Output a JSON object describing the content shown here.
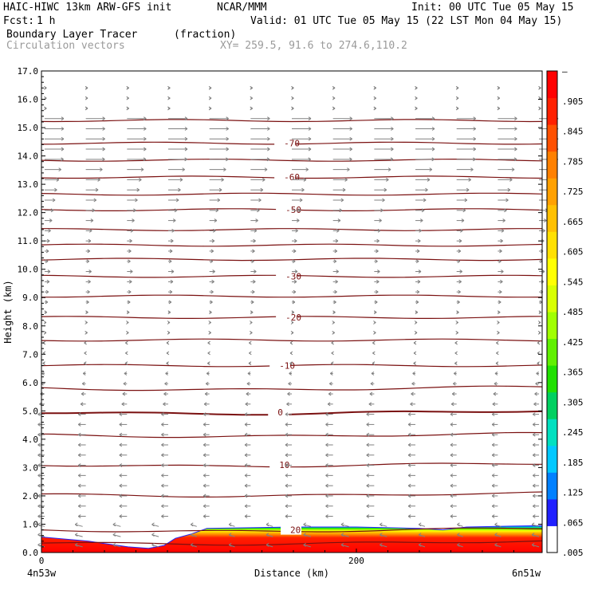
{
  "header": {
    "model": "HAIC-HIWC 13km ARW-GFS init",
    "center": "NCAR/MMM",
    "init": "Init: 00 UTC Tue 05 May 15",
    "fcst_label": "Fcst:",
    "fcst_value": "1 h",
    "valid": "Valid: 01 UTC Tue 05 May 15 (22 LST Mon 04 May 15)",
    "field1_name": "Boundary Layer Tracer",
    "field1_units": "(fraction)",
    "field2_name": "Circulation vectors",
    "xy": "XY= 259.5, 91.6 to 274.6,110.2"
  },
  "colors": {
    "contour": "#7a1010",
    "vector": "#808080",
    "scale": [
      "#ffffff",
      "#2020ff",
      "#0080ff",
      "#00c8ff",
      "#00e0c0",
      "#00d060",
      "#20e000",
      "#60f000",
      "#a0ff00",
      "#d8ff00",
      "#ffff00",
      "#ffe000",
      "#ffc000",
      "#ffa000",
      "#ff8000",
      "#ff5000",
      "#ff2000",
      "#ff0000"
    ]
  },
  "chart_data": {
    "type": "cross-section",
    "xlabel": "Distance (km)",
    "ylabel": "Height (km)",
    "x_ticks": [
      {
        "value": 0,
        "label": "0"
      },
      {
        "value": 200,
        "label": "200"
      }
    ],
    "x_end_labels": {
      "left": "4n53w",
      "right": "6n51w"
    },
    "xlim": [
      0,
      318
    ],
    "ylim": [
      0,
      17
    ],
    "y_ticks": [
      "0.0",
      "1.0",
      "2.0",
      "3.0",
      "4.0",
      "5.0",
      "6.0",
      "7.0",
      "8.0",
      "9.0",
      "10.0",
      "11.0",
      "12.0",
      "13.0",
      "14.0",
      "15.0",
      "16.0",
      "17.0"
    ],
    "temperature_contours": [
      {
        "height_km": 0.8,
        "label": "20",
        "label_x_km": 158
      },
      {
        "height_km": 3.1,
        "label": "10",
        "label_x_km": 151
      },
      {
        "height_km": 4.95,
        "label": "0",
        "label_x_km": 150
      },
      {
        "height_km": 6.6,
        "label": "-10",
        "label_x_km": 151
      },
      {
        "height_km": 8.3,
        "label": "-20",
        "label_x_km": 155
      },
      {
        "height_km": 9.75,
        "label": "-30",
        "label_x_km": 155
      },
      {
        "height_km": 12.1,
        "label": "-50",
        "label_x_km": 155
      },
      {
        "height_km": 13.25,
        "label": "-60",
        "label_x_km": 154
      },
      {
        "height_km": 14.45,
        "label": "-70",
        "label_x_km": 154
      },
      {
        "height_km": 0.35,
        "label": ""
      },
      {
        "height_km": 2.05,
        "label": ""
      },
      {
        "height_km": 4.15,
        "label": ""
      },
      {
        "height_km": 5.8,
        "label": ""
      },
      {
        "height_km": 7.5,
        "label": ""
      },
      {
        "height_km": 9.05,
        "label": ""
      },
      {
        "height_km": 10.35,
        "label": ""
      },
      {
        "height_km": 10.85,
        "label": ""
      },
      {
        "height_km": 11.4,
        "label": ""
      },
      {
        "height_km": 12.65,
        "label": ""
      },
      {
        "height_km": 13.85,
        "label": ""
      },
      {
        "height_km": 15.25,
        "label": ""
      }
    ],
    "tracer_top_km": [
      {
        "x": 0,
        "top": 0.55
      },
      {
        "x": 30,
        "top": 0.4
      },
      {
        "x": 55,
        "top": 0.2
      },
      {
        "x": 68,
        "top": 0.15
      },
      {
        "x": 78,
        "top": 0.25
      },
      {
        "x": 85,
        "top": 0.5
      },
      {
        "x": 95,
        "top": 0.65
      },
      {
        "x": 105,
        "top": 0.85
      },
      {
        "x": 160,
        "top": 0.9
      },
      {
        "x": 200,
        "top": 0.9
      },
      {
        "x": 240,
        "top": 0.85
      },
      {
        "x": 255,
        "top": 0.8
      },
      {
        "x": 270,
        "top": 0.9
      },
      {
        "x": 318,
        "top": 0.95
      }
    ],
    "colorbar": {
      "labels": [
        "–",
        ".905",
        ".845",
        ".785",
        ".725",
        ".665",
        ".605",
        ".545",
        ".485",
        ".425",
        ".365",
        ".305",
        ".245",
        ".185",
        ".125",
        ".065",
        ".005"
      ]
    }
  }
}
